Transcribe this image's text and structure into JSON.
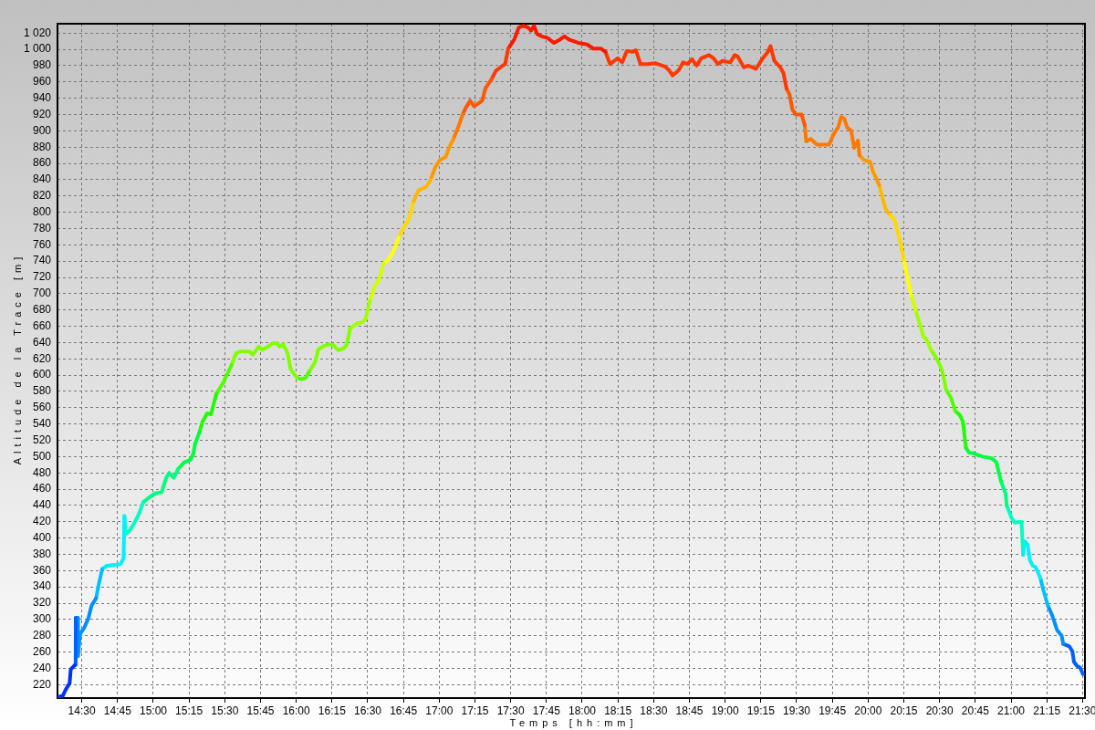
{
  "chart_data": {
    "type": "line",
    "xlabel": "Temps [hh:mm]",
    "ylabel": "Altitude de la Trace [m]",
    "series": [
      {
        "color": "#0030ff",
        "x": [
          14.334,
          14.366,
          14.388,
          14.415,
          14.423,
          14.452
        ],
        "values": [
          205,
          206,
          214,
          222,
          239,
          244
        ]
      },
      {
        "color": "#0060ff",
        "x": [
          14.452,
          14.457,
          14.458
        ],
        "values": [
          244,
          254,
          302
        ]
      },
      {
        "color": "#0090ff",
        "x": [
          14.458,
          14.473,
          14.474,
          14.487,
          14.515,
          14.547,
          14.568,
          14.6
        ],
        "values": [
          302,
          302,
          255,
          282,
          289,
          302,
          317,
          326
        ]
      },
      {
        "color": "#00c0ff",
        "x": [
          14.6,
          14.621,
          14.643
        ],
        "values": [
          326,
          345,
          362
        ]
      },
      {
        "color": "#00f0ff",
        "x": [
          14.643,
          14.675,
          14.771,
          14.792,
          14.798
        ],
        "values": [
          362,
          366,
          368,
          375,
          427
        ]
      },
      {
        "color": "#00ffc0",
        "x": [
          14.798,
          14.806,
          14.834,
          14.866,
          14.898,
          14.93
        ],
        "values": [
          427,
          405,
          409,
          418,
          429,
          444
        ]
      },
      {
        "color": "#00ff80",
        "x": [
          14.93,
          14.972,
          15.015,
          15.058,
          15.09,
          15.111,
          15.143,
          15.175
        ],
        "values": [
          444,
          450,
          455,
          456,
          474,
          480,
          474,
          485
        ]
      },
      {
        "color": "#00ff40",
        "x": [
          15.175,
          15.217,
          15.26,
          15.281,
          15.291,
          15.323
        ],
        "values": [
          485,
          493,
          496,
          504,
          515,
          530
        ]
      },
      {
        "color": "#20ff00",
        "x": [
          15.323,
          15.345,
          15.377,
          15.404,
          15.441
        ],
        "values": [
          530,
          543,
          553,
          552,
          577
        ]
      },
      {
        "color": "#50ff00",
        "x": [
          15.441,
          15.494,
          15.505,
          15.547
        ],
        "values": [
          577,
          592,
          597,
          612
        ]
      },
      {
        "color": "#80ff00",
        "x": [
          15.547,
          15.579,
          15.61,
          15.674,
          15.696,
          15.738,
          15.76,
          15.802,
          15.834,
          15.866,
          15.883,
          15.909,
          15.94,
          15.961,
          16.004
        ],
        "values": [
          612,
          627,
          629,
          629,
          625,
          635,
          631,
          635,
          639,
          639,
          635,
          638,
          627,
          607,
          597
        ]
      },
      {
        "color": "#50ff00",
        "x": [
          16.004,
          16.036,
          16.068,
          16.089
        ],
        "values": [
          597,
          595,
          597,
          604
        ]
      },
      {
        "color": "#80ff00",
        "x": [
          16.089,
          16.132,
          16.153,
          16.185,
          16.228,
          16.259,
          16.291,
          16.334,
          16.355,
          16.376
        ],
        "values": [
          604,
          616,
          631,
          635,
          638,
          637,
          631,
          633,
          638,
          657
        ]
      },
      {
        "color": "#a0ff00",
        "x": [
          16.376,
          16.419,
          16.462,
          16.483,
          16.515
        ],
        "values": [
          657,
          663,
          665,
          668,
          691
        ]
      },
      {
        "color": "#d0ff00",
        "x": [
          16.515,
          16.547,
          16.579,
          16.61
        ],
        "values": [
          691,
          709,
          717,
          737
        ]
      },
      {
        "color": "#ffff00",
        "x": [
          16.61,
          16.642,
          16.685,
          16.717
        ],
        "values": [
          737,
          741,
          754,
          769
        ]
      },
      {
        "color": "#ffd800",
        "x": [
          16.717,
          16.749,
          16.791,
          16.813
        ],
        "values": [
          769,
          780,
          793,
          810
        ]
      },
      {
        "color": "#ffb800",
        "x": [
          16.813,
          16.855,
          16.908,
          16.94
        ],
        "values": [
          810,
          827,
          831,
          840
        ]
      },
      {
        "color": "#ff9800",
        "x": [
          16.94,
          16.972,
          17.004,
          17.046,
          17.068,
          17.1
        ],
        "values": [
          840,
          855,
          864,
          868,
          879,
          890
        ]
      },
      {
        "color": "#ff7800",
        "x": [
          17.1,
          17.132,
          17.164
        ],
        "values": [
          890,
          904,
          920
        ]
      },
      {
        "color": "#ff5800",
        "x": [
          17.164,
          17.185,
          17.217,
          17.244,
          17.301,
          17.323,
          17.365
        ],
        "values": [
          920,
          928,
          937,
          930,
          937,
          952,
          963
        ]
      },
      {
        "color": "#ff3800",
        "x": [
          17.365,
          17.397,
          17.461,
          17.483
        ],
        "values": [
          963,
          974,
          982,
          1001
        ]
      },
      {
        "color": "#ff1800",
        "x": [
          17.483,
          17.525,
          17.557,
          17.589,
          17.621,
          17.642,
          17.663,
          17.685,
          17.716,
          17.759,
          17.802,
          17.844,
          17.876,
          17.908,
          17.972,
          18.035,
          18.078,
          18.131,
          18.163
        ],
        "values": [
          1001,
          1012,
          1027,
          1029,
          1027,
          1023,
          1029,
          1019,
          1016,
          1014,
          1008,
          1012,
          1016,
          1012,
          1008,
          1006,
          1001,
          1001,
          997
        ]
      },
      {
        "color": "#ff3800",
        "x": [
          18.163,
          18.195,
          18.249,
          18.28,
          18.312,
          18.355,
          18.376,
          18.408,
          18.461,
          18.514,
          18.578,
          18.61,
          18.632,
          18.674,
          18.706,
          18.737,
          18.769,
          18.801,
          18.833,
          18.887,
          18.919,
          18.951,
          18.982,
          19.036,
          19.067,
          19.089,
          19.131,
          19.163,
          19.216,
          19.259,
          19.291,
          19.318,
          19.344,
          19.386,
          19.408,
          19.429
        ],
        "values": [
          997,
          982,
          989,
          984,
          998,
          997,
          999,
          982,
          982,
          983,
          979,
          974,
          968,
          974,
          984,
          982,
          988,
          980,
          989,
          993,
          989,
          982,
          986,
          984,
          993,
          991,
          978,
          980,
          976,
          988,
          995,
          1004,
          986,
          978,
          971,
          952
        ]
      },
      {
        "color": "#ff5800",
        "x": [
          19.429,
          19.45,
          19.471,
          19.493,
          19.535,
          19.557
        ],
        "values": [
          952,
          945,
          926,
          920,
          920,
          907
        ]
      },
      {
        "color": "#ff7800",
        "x": [
          19.557,
          19.567,
          19.599,
          19.642,
          19.727,
          19.759,
          19.79,
          19.812,
          19.833,
          19.854,
          19.882,
          19.903,
          19.929,
          19.94
        ],
        "values": [
          907,
          887,
          890,
          883,
          883,
          896,
          904,
          917,
          915,
          904,
          900,
          879,
          888,
          870
        ]
      },
      {
        "color": "#ff9800",
        "x": [
          19.94,
          19.972,
          20.014,
          20.036,
          20.057,
          20.078
        ],
        "values": [
          870,
          864,
          862,
          849,
          842,
          833
        ]
      },
      {
        "color": "#ffb800",
        "x": [
          20.078,
          20.099,
          20.12,
          20.141
        ],
        "values": [
          833,
          819,
          805,
          799
        ]
      },
      {
        "color": "#ffd800",
        "x": [
          20.141,
          20.184,
          20.205,
          20.227,
          20.248
        ],
        "values": [
          799,
          791,
          777,
          762,
          743
        ]
      },
      {
        "color": "#ffff00",
        "x": [
          20.248,
          20.269,
          20.301
        ],
        "values": [
          743,
          724,
          698
        ]
      },
      {
        "color": "#d0ff00",
        "x": [
          20.301,
          20.333
        ],
        "values": [
          698,
          679
        ]
      },
      {
        "color": "#a0ff00",
        "x": [
          20.333,
          20.365,
          20.386,
          20.408,
          20.439
        ],
        "values": [
          679,
          661,
          648,
          644,
          631
        ]
      },
      {
        "color": "#80ff00",
        "x": [
          20.439,
          20.471,
          20.503,
          20.524,
          20.546
        ],
        "values": [
          631,
          623,
          612,
          601,
          582
        ]
      },
      {
        "color": "#50ff00",
        "x": [
          20.546,
          20.578,
          20.61
        ],
        "values": [
          582,
          573,
          556
        ]
      },
      {
        "color": "#20ff00",
        "x": [
          20.61,
          20.642,
          20.663,
          20.684
        ],
        "values": [
          556,
          551,
          543,
          511
        ]
      },
      {
        "color": "#00ff40",
        "x": [
          20.684,
          20.706,
          20.738,
          20.801,
          20.865,
          20.897,
          20.929
        ],
        "values": [
          511,
          505,
          504,
          500,
          498,
          493,
          470
        ]
      },
      {
        "color": "#00ff80",
        "x": [
          20.929,
          20.961,
          20.971
        ],
        "values": [
          470,
          455,
          439
        ]
      },
      {
        "color": "#00ffc0",
        "x": [
          20.971,
          21.003,
          21.025,
          21.073,
          21.082
        ],
        "values": [
          439,
          425,
          419,
          420,
          388
        ]
      },
      {
        "color": "#00f0ff",
        "x": [
          21.082,
          21.084,
          21.095,
          21.116,
          21.131,
          21.152,
          21.173,
          21.205
        ],
        "values": [
          388,
          379,
          396,
          392,
          373,
          366,
          364,
          351
        ]
      },
      {
        "color": "#00c0ff",
        "x": [
          21.205,
          21.226,
          21.258
        ],
        "values": [
          351,
          336,
          317
        ]
      },
      {
        "color": "#0090ff",
        "x": [
          21.258,
          21.29,
          21.322,
          21.354,
          21.365
        ],
        "values": [
          317,
          304,
          287,
          280,
          270
        ]
      },
      {
        "color": "#0060ff",
        "x": [
          21.365,
          21.408,
          21.429,
          21.44,
          21.461,
          21.482,
          21.503
        ],
        "values": [
          270,
          267,
          261,
          248,
          243,
          241,
          233
        ]
      }
    ],
    "xlim": [
      14.33,
      21.517
    ],
    "ylim": [
      203.5,
      1031.5
    ],
    "xticks": [
      {
        "value": 14.5,
        "label": "14:30"
      },
      {
        "value": 14.75,
        "label": "14:45"
      },
      {
        "value": 15,
        "label": "15:00"
      },
      {
        "value": 15.25,
        "label": "15:15"
      },
      {
        "value": 15.5,
        "label": "15:30"
      },
      {
        "value": 15.75,
        "label": "15:45"
      },
      {
        "value": 16,
        "label": "16:00"
      },
      {
        "value": 16.25,
        "label": "16:15"
      },
      {
        "value": 16.5,
        "label": "16:30"
      },
      {
        "value": 16.75,
        "label": "16:45"
      },
      {
        "value": 17,
        "label": "17:00"
      },
      {
        "value": 17.25,
        "label": "17:15"
      },
      {
        "value": 17.5,
        "label": "17:30"
      },
      {
        "value": 17.75,
        "label": "17:45"
      },
      {
        "value": 18,
        "label": "18:00"
      },
      {
        "value": 18.25,
        "label": "18:15"
      },
      {
        "value": 18.5,
        "label": "18:30"
      },
      {
        "value": 18.75,
        "label": "18:45"
      },
      {
        "value": 19,
        "label": "19:00"
      },
      {
        "value": 19.25,
        "label": "19:15"
      },
      {
        "value": 19.5,
        "label": "19:30"
      },
      {
        "value": 19.75,
        "label": "19:45"
      },
      {
        "value": 20,
        "label": "20:00"
      },
      {
        "value": 20.25,
        "label": "20:15"
      },
      {
        "value": 20.5,
        "label": "20:30"
      },
      {
        "value": 20.75,
        "label": "20:45"
      },
      {
        "value": 21,
        "label": "21:00"
      },
      {
        "value": 21.25,
        "label": "21:15"
      },
      {
        "value": 21.5,
        "label": "21:30"
      }
    ],
    "yticks": [
      220,
      240,
      260,
      280,
      300,
      320,
      340,
      360,
      380,
      400,
      420,
      440,
      460,
      480,
      500,
      520,
      540,
      560,
      580,
      600,
      620,
      640,
      660,
      680,
      700,
      720,
      740,
      760,
      780,
      800,
      820,
      840,
      860,
      880,
      900,
      920,
      940,
      960,
      980,
      {
        "value": 1000,
        "label": "1 000"
      },
      {
        "value": 1020,
        "label": "1 020"
      }
    ],
    "grid": true,
    "marker": "none",
    "line_style": "solid"
  }
}
